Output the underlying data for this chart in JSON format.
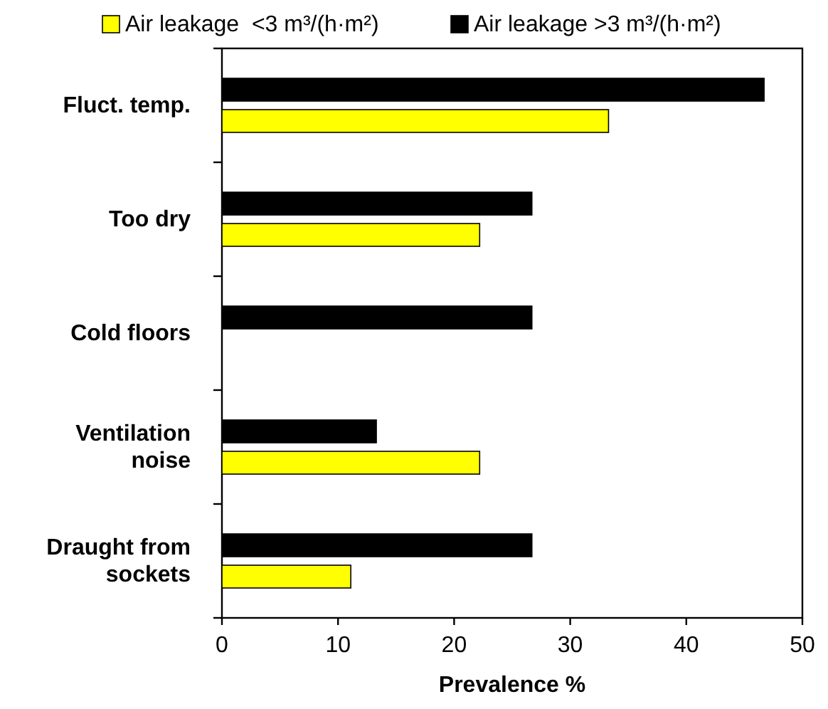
{
  "chart_data": {
    "type": "bar",
    "orientation": "horizontal",
    "categories": [
      "Fluct. temp.",
      "Too dry",
      "Cold floors",
      "Ventilation noise",
      "Draught from sockets"
    ],
    "series": [
      {
        "name": "Air leakage >3 m³/(h·m²)",
        "color": "#000000",
        "values": [
          46.7,
          26.7,
          26.7,
          13.3,
          26.7
        ]
      },
      {
        "name": "Air leakage  <3 m³/(h·m²)",
        "color": "#ffff00",
        "values": [
          33.3,
          22.2,
          null,
          22.2,
          11.1
        ]
      }
    ],
    "xlabel": "Prevalence %",
    "xlim": [
      0,
      50
    ],
    "xticks": [
      0,
      10,
      20,
      30,
      40,
      50
    ],
    "grid": false,
    "legend": "top"
  }
}
